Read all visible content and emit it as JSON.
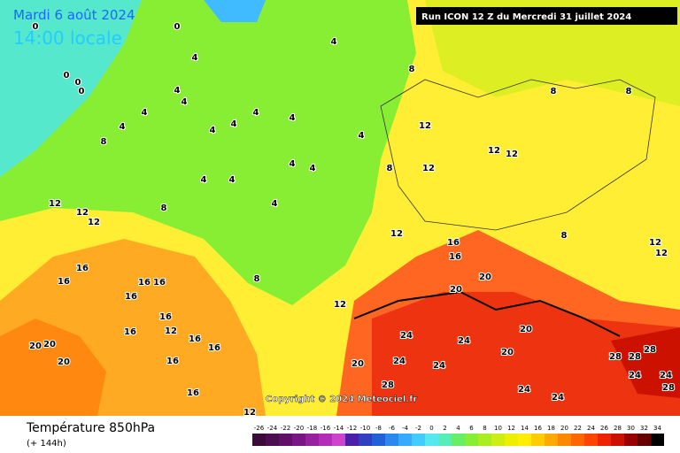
{
  "header": {
    "date": "Mardi 6 août 2024",
    "time": "14:00 locale",
    "run": "Run ICON 12 Z du Mercredi 31 juillet 2024"
  },
  "copyright": "Copyright © 2024 Meteociel.fr",
  "legend": {
    "title": "Température 850hPa",
    "subtitle": "(+ 144h)",
    "ticks": [
      -26,
      -24,
      -22,
      -20,
      -18,
      -16,
      -14,
      -12,
      -10,
      -8,
      -6,
      -4,
      -2,
      0,
      2,
      4,
      6,
      8,
      10,
      12,
      14,
      16,
      18,
      20,
      22,
      24,
      26,
      28,
      30,
      32,
      34
    ],
    "colors": [
      "#3a0a3a",
      "#4b0f4f",
      "#620f6a",
      "#7a1585",
      "#96209e",
      "#b22cb8",
      "#cc44cc",
      "#4b1fa8",
      "#2f3fc0",
      "#2060d8",
      "#2a88ee",
      "#35aaff",
      "#40ccff",
      "#55e8ee",
      "#55eebb",
      "#66ee66",
      "#88ee33",
      "#aaee22",
      "#ccee11",
      "#eeee00",
      "#ffee00",
      "#ffcc00",
      "#ffaa00",
      "#ff8800",
      "#ff6600",
      "#ff4400",
      "#ee2200",
      "#cc1100",
      "#990000",
      "#660000",
      "#000000"
    ]
  },
  "contour_labels": [
    0,
    0,
    0,
    0,
    0,
    4,
    4,
    4,
    4,
    4,
    4,
    4,
    4,
    4,
    4,
    4,
    4,
    4,
    4,
    4,
    4,
    8,
    8,
    8,
    8,
    8,
    8,
    8,
    8,
    12,
    12,
    12,
    12,
    12,
    12,
    12,
    12,
    12,
    12,
    12,
    12,
    12,
    16,
    16,
    16,
    16,
    16,
    16,
    16,
    16,
    16,
    16,
    16,
    16,
    16,
    20,
    20,
    20,
    20,
    20,
    20,
    20,
    20,
    24,
    24,
    24,
    24,
    24,
    24,
    28,
    28,
    28,
    28,
    24,
    24,
    28
  ]
}
